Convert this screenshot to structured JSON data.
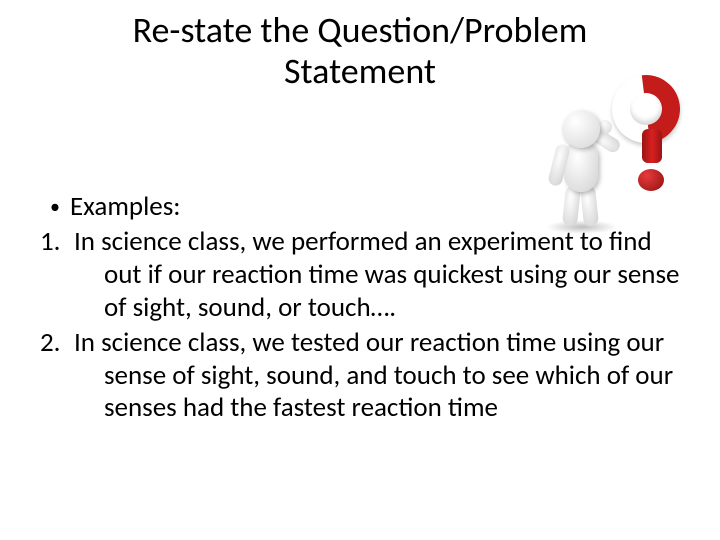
{
  "title": "Re-state the Question/Problem Statement",
  "bullet_label": "Examples:",
  "items": [
    {
      "num": "1.",
      "text": "In science class, we performed an experiment to find out if our reaction time was quickest using our sense of sight, sound, or touch…."
    },
    {
      "num": "2.",
      "text": "In science class, we tested our reaction time using our sense of sight, sound, and touch to see which of our senses had the fastest reaction time"
    }
  ],
  "colors": {
    "text": "#000000",
    "background": "#ffffff",
    "question_mark": "#c41b1b",
    "figure_body": "#e8e8e8"
  },
  "typography": {
    "title_fontsize": 36,
    "body_fontsize": 27,
    "font_family": "Calibri"
  },
  "figure": {
    "description": "thinking-person-with-red-question-mark"
  }
}
